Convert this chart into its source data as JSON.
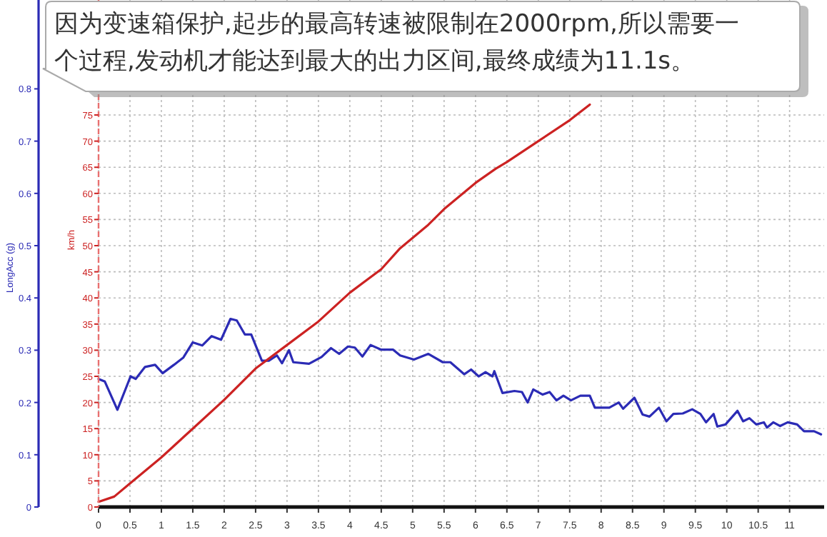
{
  "chart_data": {
    "type": "line",
    "xlabel": null,
    "ylabel": "LongAcc (g)",
    "y2label": "km/h",
    "annotations": [
      "因为变速箱保护,起步的最高转速被限制在2000rpm,所以需要一个过程,发动机才能达到最大的出力区间,最终成绩为11.1s。"
    ],
    "xlim": [
      0,
      11.55
    ],
    "xticks": [
      0,
      0.5,
      1,
      1.5,
      2,
      2.5,
      3,
      3.5,
      4,
      4.5,
      5,
      5.5,
      6,
      6.5,
      7,
      7.5,
      8,
      8.5,
      9,
      9.5,
      10,
      10.5,
      11
    ],
    "ylim": [
      0,
      0.97
    ],
    "yticks": [
      0,
      0.1,
      0.2,
      0.3,
      0.4,
      0.5,
      0.6,
      0.7,
      0.8
    ],
    "y2lim": [
      0,
      97
    ],
    "y2ticks": [
      0,
      5,
      10,
      15,
      20,
      25,
      30,
      35,
      40,
      45,
      50,
      55,
      60,
      65,
      70,
      75
    ],
    "grid": true,
    "line_style": "solid",
    "series": [
      {
        "color": "#2b2bb5",
        "axis": "y",
        "x": [
          0,
          0.1,
          0.3,
          0.51,
          0.59,
          0.74,
          0.9,
          1.02,
          1.2,
          1.35,
          1.5,
          1.65,
          1.8,
          1.95,
          2.1,
          2.2,
          2.33,
          2.43,
          2.6,
          2.71,
          2.84,
          2.92,
          3.03,
          3.1,
          3.35,
          3.55,
          3.7,
          3.83,
          3.97,
          4.08,
          4.2,
          4.33,
          4.5,
          4.69,
          4.8,
          5.02,
          5.25,
          5.48,
          5.6,
          5.82,
          5.93,
          6.05,
          6.16,
          6.27,
          6.3,
          6.43,
          6.62,
          6.74,
          6.83,
          6.92,
          7.07,
          7.18,
          7.29,
          7.4,
          7.52,
          7.67,
          7.82,
          7.9,
          8.13,
          8.28,
          8.35,
          8.53,
          8.66,
          8.77,
          8.92,
          9.04,
          9.15,
          9.3,
          9.45,
          9.58,
          9.67,
          9.79,
          9.85,
          9.98,
          10.17,
          10.26,
          10.36,
          10.47,
          10.59,
          10.64,
          10.74,
          10.85,
          10.97,
          11.12,
          11.23,
          11.39,
          11.5
        ],
        "values": [
          0.245,
          0.24,
          0.186,
          0.25,
          0.245,
          0.268,
          0.272,
          0.256,
          0.272,
          0.286,
          0.315,
          0.309,
          0.327,
          0.32,
          0.36,
          0.357,
          0.33,
          0.33,
          0.28,
          0.28,
          0.29,
          0.275,
          0.3,
          0.277,
          0.274,
          0.287,
          0.304,
          0.293,
          0.307,
          0.305,
          0.288,
          0.31,
          0.301,
          0.301,
          0.29,
          0.282,
          0.293,
          0.277,
          0.277,
          0.254,
          0.263,
          0.25,
          0.258,
          0.25,
          0.26,
          0.218,
          0.222,
          0.22,
          0.2,
          0.225,
          0.215,
          0.22,
          0.204,
          0.213,
          0.204,
          0.213,
          0.213,
          0.19,
          0.19,
          0.2,
          0.188,
          0.209,
          0.177,
          0.173,
          0.19,
          0.164,
          0.178,
          0.179,
          0.187,
          0.178,
          0.162,
          0.178,
          0.154,
          0.158,
          0.184,
          0.164,
          0.17,
          0.158,
          0.162,
          0.152,
          0.162,
          0.155,
          0.162,
          0.158,
          0.145,
          0.145,
          0.139
        ]
      },
      {
        "color": "#cc2222",
        "axis": "y2",
        "x": [
          0,
          0.25,
          0.5,
          1,
          1.5,
          2,
          2.5,
          3,
          3.5,
          4,
          4.5,
          4.8,
          5.25,
          5.5,
          6,
          6.32,
          6.5,
          7,
          7.5,
          7.82
        ],
        "values": [
          1,
          2,
          4.5,
          9.5,
          15,
          20.5,
          26.5,
          31,
          35.5,
          41,
          45.5,
          49.5,
          54,
          57,
          62,
          64.7,
          66,
          70,
          74,
          77
        ]
      }
    ]
  }
}
